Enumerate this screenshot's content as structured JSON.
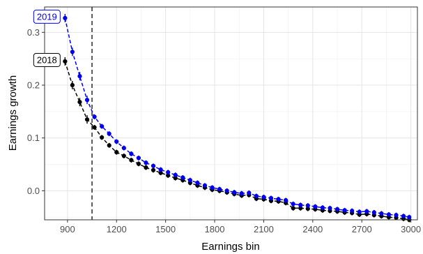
{
  "chart_data": {
    "type": "line",
    "title": "",
    "xlabel": "Earnings bin",
    "ylabel": "Earnings growth",
    "xlim": [
      760,
      3040
    ],
    "ylim": [
      -0.055,
      0.348
    ],
    "x_ticks": [
      900,
      1200,
      1500,
      1800,
      2100,
      2400,
      2700,
      3000
    ],
    "x_tick_labels": [
      "900",
      "1200",
      "1500",
      "1800",
      "2100",
      "2400",
      "2700",
      "3000"
    ],
    "y_ticks": [
      0.0,
      0.1,
      0.2,
      0.3
    ],
    "y_tick_labels": [
      "0.0",
      "0.1",
      "0.2",
      "0.3"
    ],
    "grid": true,
    "vline_x": 1050,
    "x": [
      885,
      930,
      975,
      1020,
      1065,
      1110,
      1155,
      1200,
      1245,
      1290,
      1335,
      1380,
      1425,
      1470,
      1515,
      1560,
      1605,
      1650,
      1695,
      1740,
      1785,
      1830,
      1875,
      1920,
      1965,
      2010,
      2055,
      2100,
      2145,
      2190,
      2235,
      2280,
      2325,
      2370,
      2415,
      2460,
      2505,
      2550,
      2595,
      2640,
      2685,
      2730,
      2775,
      2820,
      2865,
      2910,
      2955,
      2990
    ],
    "series": [
      {
        "name": "2018",
        "color": "#000000",
        "values": [
          0.245,
          0.2,
          0.168,
          0.135,
          0.12,
          0.101,
          0.086,
          0.073,
          0.066,
          0.058,
          0.051,
          0.044,
          0.039,
          0.034,
          0.029,
          0.024,
          0.02,
          0.015,
          0.01,
          0.006,
          0.002,
          0.0,
          -0.003,
          -0.006,
          -0.009,
          -0.008,
          -0.015,
          -0.016,
          -0.019,
          -0.02,
          -0.023,
          -0.033,
          -0.033,
          -0.034,
          -0.035,
          -0.037,
          -0.038,
          -0.039,
          -0.041,
          -0.042,
          -0.045,
          -0.044,
          -0.046,
          -0.048,
          -0.05,
          -0.051,
          -0.053,
          -0.055
        ]
      },
      {
        "name": "2019",
        "color": "#0000ee",
        "values": [
          0.327,
          0.263,
          0.217,
          0.172,
          0.14,
          0.122,
          0.108,
          0.093,
          0.081,
          0.07,
          0.062,
          0.053,
          0.047,
          0.04,
          0.035,
          0.03,
          0.025,
          0.02,
          0.015,
          0.01,
          0.006,
          0.003,
          0.0,
          -0.003,
          -0.005,
          -0.004,
          -0.01,
          -0.012,
          -0.014,
          -0.016,
          -0.018,
          -0.025,
          -0.027,
          -0.028,
          -0.03,
          -0.032,
          -0.033,
          -0.035,
          -0.037,
          -0.038,
          -0.04,
          -0.039,
          -0.041,
          -0.043,
          -0.045,
          -0.046,
          -0.048,
          -0.05
        ]
      }
    ]
  }
}
